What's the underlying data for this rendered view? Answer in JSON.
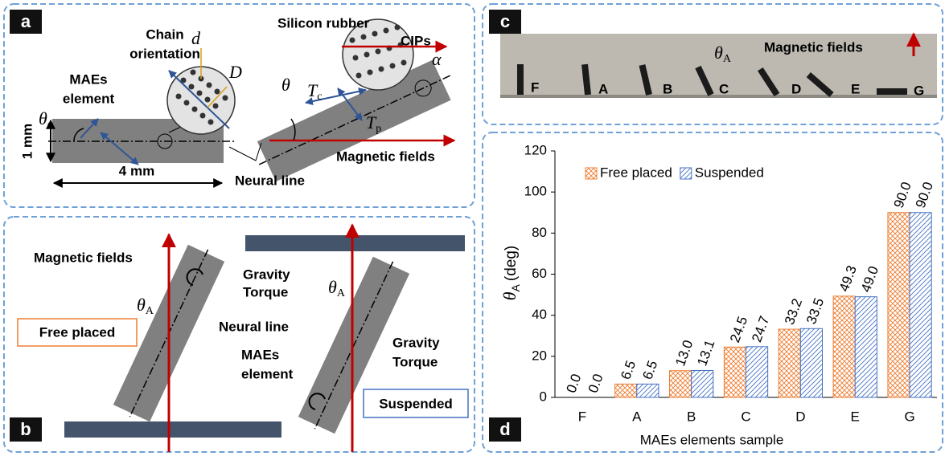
{
  "panel_a": {
    "label": "a",
    "chain_orientation": [
      "Chain",
      "orientation"
    ],
    "maes_element": [
      "MAEs",
      "element"
    ],
    "d_small": "d",
    "d_large": "D",
    "theta_c": {
      "symbol": "θ",
      "sub": "c"
    },
    "height": "1 mm",
    "width": "4 mm",
    "silicon_rubber": "Silicon rubber",
    "cips": "CIPs",
    "alpha": "α",
    "theta": "θ",
    "t_c": {
      "symbol": "T",
      "sub": "c"
    },
    "t_p": {
      "symbol": "T",
      "sub": "p"
    },
    "magnetic_fields": "Magnetic fields",
    "neural_line": "Neural line"
  },
  "panel_b": {
    "label": "b",
    "magnetic_fields": "Magnetic fields",
    "gravity_torque_left": [
      "Gravity",
      "Torque"
    ],
    "theta_a_left": {
      "symbol": "θ",
      "sub": "A"
    },
    "neural_line": "Neural line",
    "free_placed": "Free placed",
    "maes_element": [
      "MAEs",
      "element"
    ],
    "theta_a_right": {
      "symbol": "θ",
      "sub": "A"
    },
    "gravity_torque_right": [
      "Gravity",
      "Torque"
    ],
    "suspended": "Suspended"
  },
  "panel_c": {
    "label": "c",
    "theta_a": {
      "symbol": "θ",
      "sub": "A"
    },
    "magnetic_fields": "Magnetic fields",
    "samples": [
      "F",
      "A",
      "B",
      "C",
      "D",
      "E",
      "G"
    ]
  },
  "panel_d_label": "d",
  "chart_data": {
    "type": "bar",
    "y_label": {
      "symbol": "θ",
      "sub": "A",
      "unit": "(deg)"
    },
    "x_label": "MAEs elements sample",
    "categories": [
      "F",
      "A",
      "B",
      "C",
      "D",
      "E",
      "G"
    ],
    "series": [
      {
        "name": "Free placed",
        "color": "#ed7d31",
        "values": [
          0.0,
          6.5,
          13.0,
          24.5,
          33.2,
          49.3,
          90.0
        ],
        "value_labels": [
          "0.0",
          "6.5",
          "13.0",
          "24.5",
          "33.2",
          "49.3",
          "90.0"
        ]
      },
      {
        "name": "Suspended",
        "color": "#4472c4",
        "values": [
          0.0,
          6.5,
          13.1,
          24.7,
          33.5,
          49.0,
          90.0
        ],
        "value_labels": [
          "0.0",
          "6.5",
          "13.1",
          "24.7",
          "33.5",
          "49.0",
          "90.0"
        ]
      }
    ],
    "ylim": [
      0,
      120
    ],
    "yticks": [
      0,
      20,
      40,
      60,
      80,
      100,
      120
    ],
    "legend": "upper left"
  }
}
